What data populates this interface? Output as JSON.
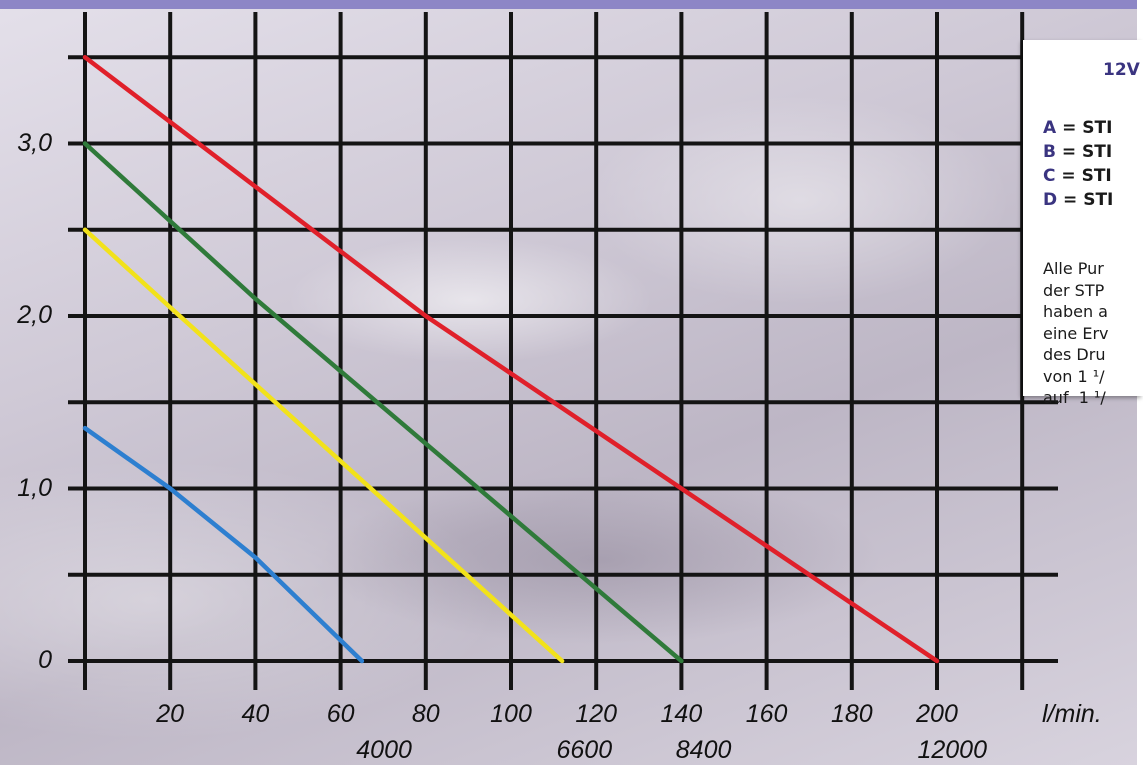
{
  "legend": {
    "title": "12V",
    "entries": [
      {
        "key": "A",
        "label": "= STI",
        "color": "#e0202a"
      },
      {
        "key": "B",
        "label": "= STI",
        "color": "#2f7a3a"
      },
      {
        "key": "C",
        "label": "= STI",
        "color": "#f2e21a"
      },
      {
        "key": "D",
        "label": "= STI",
        "color": "#2d7fd0"
      }
    ],
    "note_lines": [
      "Alle Pur",
      "der STP",
      "haben a",
      "eine Erv",
      "des Dru",
      "von 1 ¹/",
      "auf  1 ¹/"
    ]
  },
  "chart_data": {
    "type": "line",
    "y_tick_labels": [
      "0",
      "1,0",
      "2,0",
      "3,0"
    ],
    "y_ticks": [
      0,
      1,
      2,
      3
    ],
    "ylim": [
      0,
      3.5
    ],
    "x_tick_labels": [
      "20",
      "40",
      "60",
      "80",
      "100",
      "120",
      "140",
      "160",
      "180",
      "200"
    ],
    "x_ticks": [
      20,
      40,
      60,
      80,
      100,
      120,
      140,
      160,
      180,
      200
    ],
    "xlim": [
      0,
      220
    ],
    "x_unit": "l/min.",
    "secondary_x_labels": [
      {
        "x": 65,
        "label": "4000"
      },
      {
        "x": 112,
        "label": "6600"
      },
      {
        "x": 140,
        "label": "8400"
      },
      {
        "x": 200,
        "label": "12000"
      }
    ],
    "grid": true,
    "series": [
      {
        "color": "#e0202a",
        "points": [
          [
            0,
            3.5
          ],
          [
            80,
            2.0
          ],
          [
            140,
            1.0
          ],
          [
            200,
            0
          ]
        ]
      },
      {
        "color": "#2f7a3a",
        "points": [
          [
            0,
            3.0
          ],
          [
            40,
            2.1
          ],
          [
            140,
            0
          ]
        ]
      },
      {
        "color": "#f2e21a",
        "points": [
          [
            0,
            2.5
          ],
          [
            20,
            2.05
          ],
          [
            112,
            0
          ]
        ]
      },
      {
        "color": "#2d7fd0",
        "points": [
          [
            0,
            1.35
          ],
          [
            20,
            1.0
          ],
          [
            40,
            0.6
          ],
          [
            65,
            0
          ]
        ]
      }
    ]
  }
}
